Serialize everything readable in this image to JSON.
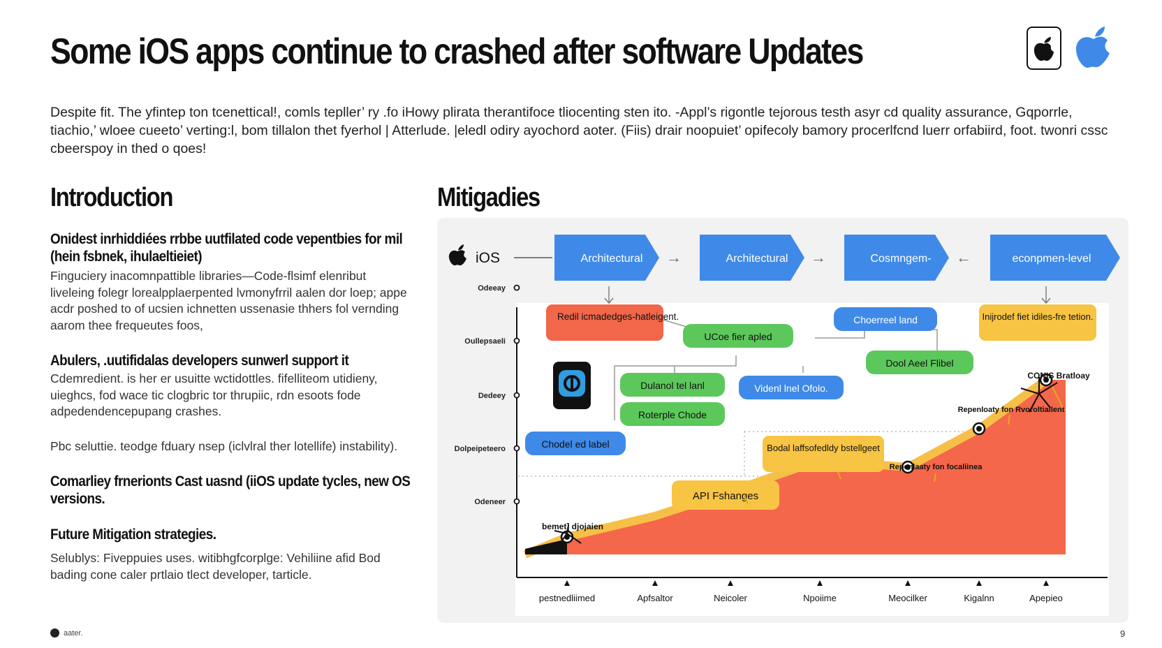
{
  "slide": {
    "title": "Some iOS apps continue to crashed after software Updates",
    "intro": "Despite fit. The yfintep ton tcenettical!, comls tepller’ ry .fo iHowy plirata therantifoce tliocenting sten ito. -Appl’s rigontle tejorous testh asyr cd quality assurance, Gqporrle, tiachio,’ wloee cueeto’ verting:l, bom tillalon thet fyerhol | Atterlude. |eledl odiry ayochord aoter. (Fiis) drair noopuiet’ opifecoly bamory procerlfcnd luerr orfabiird, foot. twonri cssc cbeerspoy in thed o qoes!",
    "page_number": "9",
    "footer_note": "aater."
  },
  "left": {
    "heading": "Introduction",
    "sections": [
      {
        "title": "Onidest inrhiddiées rrbbe uutfilated code vepentbies for mil (hein fsbnek, ihulaeltieiet)",
        "body": "Finguciery inacomnpattible libraries—Code-flsimf elenribut liveleing folegr lorealpplaerpented lvmonyfrril aalen dor loep; appe acdr poshed to of ucsien ichnetten ussenasie thhers fol vernding aarom thee frequeutes foos,"
      },
      {
        "title": "Abulers, .uutifidalas developers sunwerl support it",
        "body": "Cdemredient. is her er usuitte wctidottles. fifelliteom utidieny, uieghcs, fod wace tic clogbric tor thrupiic, rdn esoots fode adpedendencepupang crashes."
      },
      {
        "title": "",
        "body": "Pbc seluttie. teodge fduary nsep (iclvlral ther lotellife) instability)."
      },
      {
        "title": "Comarliey frnerionts Cast uasnd (iiOS update tycles, new OS versions.",
        "body": ""
      },
      {
        "title": "Future Mitigation strategies.",
        "body": "Selublys: Fiveppuies uses. witibhgfcorplge: Vehiliine afid Bod bading cone caler prtlaio tlect developer, tarticle."
      }
    ]
  },
  "right": {
    "heading": "Mitigadies",
    "ios_label": "iOS",
    "flow": [
      {
        "label": "Architectural",
        "arrow_after": "→"
      },
      {
        "label": "Architectural",
        "arrow_after": "→"
      },
      {
        "label": "Cosmngem-",
        "arrow_after": "←"
      },
      {
        "label": "econpmen-level",
        "arrow_after": ""
      }
    ],
    "y_axis_labels": [
      "Odeeay",
      "Oullepsaeli",
      "Dedeey",
      "Dolpeipeteero",
      "Odeneer"
    ],
    "x_axis_labels": [
      "pestnedliimed",
      "Apfsaltor",
      "Neicoler",
      "Npoiime",
      "Meocilker",
      "Kigalnn",
      "Apepieo"
    ],
    "chart_values": [
      0.1,
      0.22,
      0.36,
      0.54,
      0.5,
      0.72,
      1.0
    ],
    "boxes": {
      "red": "Redil icmadedges-hatleigent.",
      "green_top": "UCoe fier apled",
      "green_1": "Dulanol tel lanl",
      "green_2": "Roterple Chode",
      "green_3": "Dool Aeel Flibel",
      "blue_left": "Chodel ed label",
      "blue_mid": "Videnl lnel Ofolo.",
      "blue_top": "Choerreel land",
      "yellow_top": "Inijrodef fiet idiles-fre tetion.",
      "yellow_mid": "Bodal laffsofedldy bstellgeet",
      "yellow_api": "API Fshanges"
    },
    "annotations": {
      "start": "bemet] djojaien",
      "mid": "Repenlaaty fon focaliinea",
      "upper": "Repenloaty fon Rvoroltiallent",
      "top": "CONIS Bratloay"
    },
    "colors": {
      "flow_blue": "#3f8ae8",
      "red": "#f2664a",
      "green": "#5cc85c",
      "blue": "#3f8ae8",
      "yellow": "#f8c444",
      "area": "#f4674a",
      "line": "#f6bf47"
    }
  }
}
